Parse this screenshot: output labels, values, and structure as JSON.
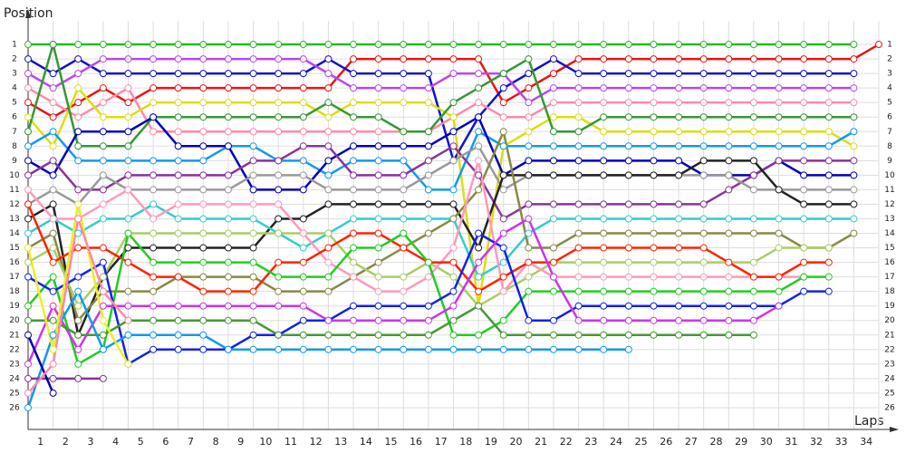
{
  "chart_data": {
    "type": "line",
    "title": "Position",
    "x_label": "Laps",
    "invert_y": true,
    "grid": true,
    "x": [
      0,
      1,
      2,
      3,
      4,
      5,
      6,
      7,
      8,
      9,
      10,
      11,
      12,
      13,
      14,
      15,
      16,
      17,
      18,
      19,
      20,
      21,
      22,
      23,
      24,
      25,
      26,
      27,
      28,
      29,
      30,
      31,
      32,
      33,
      34
    ],
    "xlim": [
      0,
      34
    ],
    "xticks": [
      1,
      2,
      3,
      4,
      5,
      6,
      7,
      8,
      9,
      10,
      11,
      12,
      13,
      14,
      15,
      16,
      17,
      18,
      19,
      20,
      21,
      22,
      23,
      24,
      25,
      26,
      27,
      28,
      29,
      30,
      31,
      32,
      33,
      34
    ],
    "ylim": [
      0,
      27.5
    ],
    "yticks": [
      1,
      2,
      3,
      4,
      5,
      6,
      7,
      8,
      9,
      10,
      11,
      12,
      13,
      14,
      15,
      16,
      17,
      18,
      19,
      20,
      21,
      22,
      23,
      24,
      25,
      26
    ],
    "series": [
      {
        "color": "#22bb22",
        "values": [
          1,
          1,
          1,
          1,
          1,
          1,
          1,
          1,
          1,
          1,
          1,
          1,
          1,
          1,
          1,
          1,
          1,
          1,
          1,
          1,
          1,
          1,
          1,
          1,
          1,
          1,
          1,
          1,
          1,
          1,
          1,
          1,
          1,
          1,
          null
        ]
      },
      {
        "color": "#ee1111",
        "values": [
          5,
          6,
          5,
          4,
          5,
          4,
          4,
          4,
          4,
          4,
          4,
          4,
          4,
          2,
          2,
          2,
          2,
          2,
          2,
          5,
          4,
          3,
          2,
          2,
          2,
          2,
          2,
          2,
          2,
          2,
          2,
          2,
          2,
          2,
          1
        ]
      },
      {
        "color": "#1111cc",
        "values": [
          2,
          3,
          2,
          3,
          3,
          3,
          3,
          3,
          3,
          3,
          3,
          3,
          2,
          3,
          3,
          3,
          3,
          9,
          6,
          4,
          3,
          2,
          3,
          3,
          3,
          3,
          3,
          3,
          3,
          3,
          3,
          3,
          3,
          3,
          null
        ]
      },
      {
        "color": "#bb44ee",
        "values": [
          3,
          4,
          3,
          2,
          2,
          2,
          2,
          2,
          2,
          2,
          2,
          2,
          3,
          4,
          4,
          4,
          4,
          3,
          3,
          3,
          5,
          4,
          4,
          4,
          4,
          4,
          4,
          4,
          4,
          4,
          4,
          4,
          4,
          4,
          null
        ]
      },
      {
        "color": "#ff88aa",
        "values": [
          4,
          5,
          6,
          5,
          4,
          7,
          7,
          7,
          7,
          7,
          7,
          7,
          7,
          7,
          7,
          7,
          7,
          6,
          5,
          6,
          6,
          5,
          5,
          5,
          5,
          5,
          5,
          5,
          5,
          5,
          5,
          5,
          5,
          5,
          null
        ]
      },
      {
        "color": "#dddd11",
        "values": [
          6,
          8,
          4,
          6,
          6,
          5,
          5,
          5,
          5,
          5,
          5,
          5,
          6,
          5,
          5,
          5,
          5,
          6,
          19,
          8,
          7,
          6,
          6,
          7,
          7,
          7,
          7,
          7,
          7,
          7,
          7,
          7,
          7,
          8,
          null
        ]
      },
      {
        "color": "#339933",
        "values": [
          7,
          1,
          8,
          8,
          8,
          6,
          6,
          6,
          6,
          6,
          6,
          6,
          5,
          6,
          6,
          7,
          7,
          5,
          4,
          3,
          2,
          7,
          7,
          6,
          6,
          6,
          6,
          6,
          6,
          6,
          6,
          6,
          6,
          6,
          null
        ]
      },
      {
        "color": "#1199ee",
        "values": [
          8,
          7,
          9,
          9,
          9,
          9,
          9,
          9,
          8,
          8,
          9,
          9,
          10,
          9,
          9,
          9,
          11,
          11,
          7,
          8,
          8,
          8,
          8,
          8,
          8,
          8,
          8,
          8,
          8,
          8,
          8,
          8,
          8,
          7,
          null
        ]
      },
      {
        "color": "#0000bb",
        "values": [
          9,
          10,
          7,
          7,
          7,
          6,
          8,
          8,
          8,
          11,
          11,
          11,
          9,
          8,
          8,
          8,
          8,
          7,
          6,
          10,
          9,
          9,
          9,
          9,
          9,
          9,
          9,
          10,
          10,
          10,
          9,
          10,
          10,
          10,
          null
        ]
      },
      {
        "color": "#883399",
        "values": [
          10,
          9,
          11,
          11,
          10,
          10,
          10,
          10,
          10,
          9,
          9,
          8,
          8,
          10,
          10,
          10,
          9,
          8,
          10,
          13,
          12,
          12,
          12,
          12,
          12,
          12,
          12,
          12,
          11,
          10,
          9,
          9,
          9,
          9,
          null
        ]
      },
      {
        "color": "#999999",
        "values": [
          12,
          11,
          12,
          10,
          11,
          11,
          11,
          11,
          11,
          10,
          10,
          10,
          11,
          11,
          11,
          11,
          10,
          9,
          8,
          11,
          10,
          10,
          10,
          10,
          10,
          10,
          10,
          10,
          10,
          11,
          11,
          11,
          11,
          11,
          null
        ]
      },
      {
        "color": "#222222",
        "values": [
          13,
          12,
          21,
          17,
          15,
          15,
          15,
          15,
          15,
          15,
          13,
          13,
          12,
          12,
          12,
          12,
          12,
          12,
          15,
          10,
          10,
          10,
          10,
          10,
          10,
          10,
          10,
          9,
          9,
          9,
          11,
          12,
          12,
          12,
          null
        ]
      },
      {
        "color": "#33cccc",
        "values": [
          14,
          13,
          14,
          13,
          13,
          12,
          13,
          13,
          13,
          13,
          14,
          15,
          14,
          13,
          13,
          13,
          13,
          13,
          17,
          16,
          14,
          13,
          13,
          13,
          13,
          13,
          13,
          13,
          13,
          13,
          13,
          13,
          13,
          13,
          null
        ]
      },
      {
        "color": "#888844",
        "values": [
          15,
          14,
          20,
          18,
          18,
          18,
          17,
          17,
          17,
          17,
          18,
          18,
          18,
          17,
          16,
          15,
          14,
          13,
          11,
          7,
          15,
          15,
          14,
          14,
          14,
          14,
          14,
          14,
          14,
          14,
          14,
          15,
          15,
          14,
          null
        ]
      },
      {
        "color": "#aacc66",
        "values": [
          16,
          15,
          19,
          17,
          14,
          14,
          14,
          14,
          14,
          14,
          14,
          14,
          14,
          16,
          17,
          17,
          16,
          17,
          19,
          18,
          17,
          16,
          16,
          16,
          16,
          16,
          16,
          16,
          16,
          16,
          15,
          15,
          15,
          null,
          null
        ]
      },
      {
        "color": "#ff99bb",
        "values": [
          11,
          13,
          13,
          12,
          11,
          13,
          12,
          12,
          12,
          12,
          12,
          14,
          16,
          17,
          18,
          18,
          17,
          15,
          9,
          18,
          16,
          17,
          17,
          17,
          17,
          17,
          17,
          17,
          17,
          17,
          17,
          17,
          null,
          null,
          null
        ]
      },
      {
        "color": "#ff2200",
        "values": [
          12,
          16,
          15,
          15,
          16,
          17,
          17,
          18,
          18,
          18,
          16,
          16,
          15,
          14,
          14,
          15,
          16,
          16,
          18,
          17,
          16,
          16,
          15,
          15,
          15,
          15,
          15,
          15,
          16,
          17,
          17,
          16,
          16,
          null,
          null
        ]
      },
      {
        "color": "#22cc22",
        "values": [
          19,
          17,
          23,
          22,
          14,
          16,
          16,
          16,
          16,
          16,
          17,
          17,
          17,
          15,
          15,
          14,
          16,
          21,
          21,
          20,
          18,
          18,
          18,
          18,
          18,
          18,
          18,
          18,
          18,
          18,
          18,
          17,
          17,
          null,
          null
        ]
      },
      {
        "color": "#1122ee",
        "values": [
          17,
          18,
          17,
          16,
          23,
          22,
          22,
          22,
          22,
          21,
          21,
          20,
          20,
          19,
          19,
          19,
          19,
          18,
          14,
          15,
          20,
          20,
          19,
          19,
          19,
          19,
          19,
          19,
          19,
          19,
          19,
          18,
          18,
          null,
          null
        ]
      },
      {
        "color": "#cc33ee",
        "values": [
          23,
          19,
          22,
          19,
          19,
          19,
          19,
          19,
          19,
          19,
          19,
          19,
          20,
          20,
          20,
          20,
          20,
          19,
          16,
          14,
          13,
          17,
          20,
          20,
          20,
          20,
          20,
          20,
          20,
          20,
          19,
          null,
          null,
          null,
          null
        ]
      },
      {
        "color": "#449933",
        "values": [
          20,
          20,
          21,
          21,
          20,
          20,
          20,
          20,
          20,
          20,
          21,
          21,
          21,
          21,
          21,
          21,
          21,
          20,
          19,
          21,
          21,
          21,
          21,
          21,
          21,
          21,
          21,
          21,
          21,
          21,
          null,
          null,
          null,
          null,
          null
        ]
      },
      {
        "color": "#1199ee",
        "values": [
          26,
          21,
          18,
          22,
          21,
          21,
          21,
          21,
          22,
          22,
          22,
          22,
          22,
          22,
          22,
          22,
          22,
          22,
          22,
          22,
          22,
          22,
          22,
          22,
          22,
          null,
          null,
          null,
          null,
          null,
          null,
          null,
          null,
          null,
          null
        ]
      },
      {
        "color": "#883399",
        "values": [
          24,
          24,
          24,
          24,
          null,
          null,
          null,
          null,
          null,
          null,
          null,
          null,
          null,
          null,
          null,
          null,
          null,
          null,
          null,
          null,
          null,
          null,
          null,
          null,
          null,
          null,
          null,
          null,
          null,
          null,
          null,
          null,
          null,
          null,
          null
        ]
      },
      {
        "color": "#0000aa",
        "values": [
          21,
          25,
          null,
          null,
          null,
          null,
          null,
          null,
          null,
          null,
          null,
          null,
          null,
          null,
          null,
          null,
          null,
          null,
          null,
          null,
          null,
          null,
          null,
          null,
          null,
          null,
          null,
          null,
          null,
          null,
          null,
          null,
          null,
          null,
          null
        ]
      },
      {
        "color": "#eeee22",
        "values": [
          15,
          22,
          12,
          20,
          23,
          null,
          null,
          null,
          null,
          null,
          null,
          null,
          null,
          null,
          null,
          null,
          null,
          null,
          null,
          null,
          null,
          null,
          null,
          null,
          null,
          null,
          null,
          null,
          null,
          null,
          null,
          null,
          null,
          null,
          null
        ]
      },
      {
        "color": "#ff88aa",
        "values": [
          25,
          23,
          13,
          18,
          20,
          null,
          null,
          null,
          null,
          null,
          null,
          null,
          null,
          null,
          null,
          null,
          null,
          null,
          null,
          null,
          null,
          null,
          null,
          null,
          null,
          null,
          null,
          null,
          null,
          null,
          null,
          null,
          null,
          null,
          null
        ]
      }
    ]
  }
}
